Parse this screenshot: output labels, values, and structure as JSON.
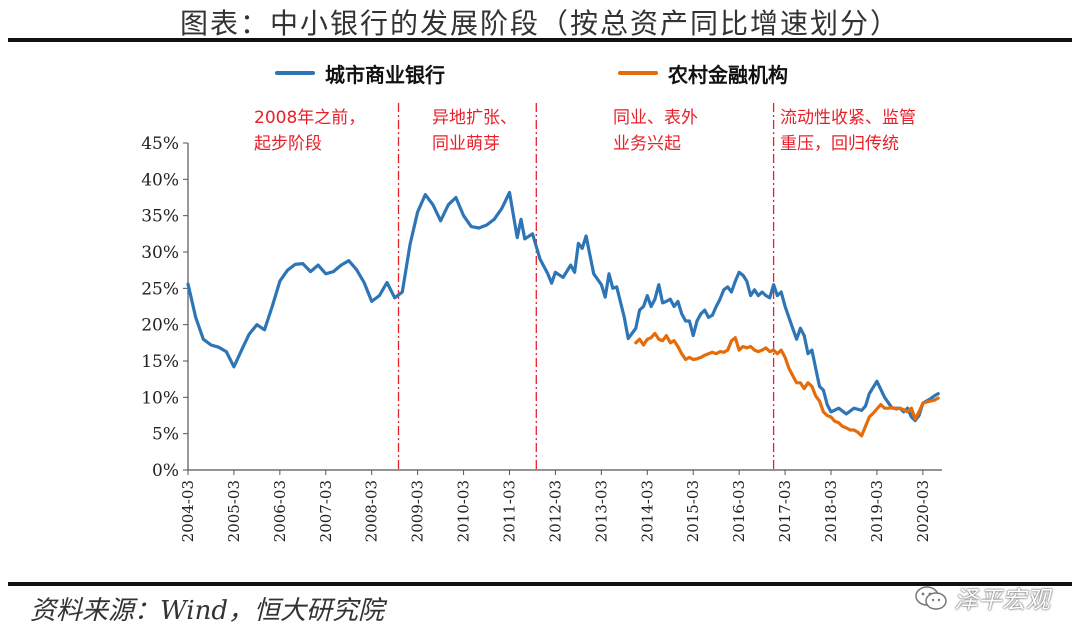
{
  "page": {
    "title": "图表：中小银行的发展阶段（按总资产同比增速划分）",
    "source": "资料来源：Wind，恒大研究院",
    "watermark": "泽平宏观"
  },
  "phases": [
    {
      "label_line1": "2008年之前，",
      "label_line2": "起步阶段"
    },
    {
      "label_line1": "异地扩张、",
      "label_line2": "同业萌芽"
    },
    {
      "label_line1": "同业、表外",
      "label_line2": "业务兴起"
    },
    {
      "label_line1": "流动性收紧、监管",
      "label_line2": "重压，回归传统"
    }
  ],
  "colors": {
    "city_bank": "#2e75b6",
    "rural_bank": "#e46c0a",
    "phase_text": "#e8202a",
    "divider": "#e8202a"
  },
  "chart_data": {
    "type": "line",
    "title": "",
    "xlabel": "",
    "ylabel": "",
    "ylim": [
      0,
      45
    ],
    "yticks": [
      "0%",
      "5%",
      "10%",
      "15%",
      "20%",
      "25%",
      "30%",
      "35%",
      "40%",
      "45%"
    ],
    "xlim": [
      "2004-03",
      "2020-08"
    ],
    "xticks": [
      "2004-03",
      "2005-03",
      "2006-03",
      "2007-03",
      "2008-03",
      "2009-03",
      "2010-03",
      "2011-03",
      "2012-03",
      "2013-03",
      "2014-03",
      "2015-03",
      "2016-03",
      "2017-03",
      "2018-03",
      "2019-03",
      "2020-03"
    ],
    "grid": false,
    "legend": "top",
    "phase_dividers": [
      "2008-10",
      "2011-10",
      "2016-12"
    ],
    "series": [
      {
        "name": "城市商业银行",
        "color": "#2e75b6",
        "points": [
          [
            "2004-03",
            25.6
          ],
          [
            "2004-05",
            21
          ],
          [
            "2004-07",
            18
          ],
          [
            "2004-09",
            17.2
          ],
          [
            "2004-11",
            16.9
          ],
          [
            "2005-01",
            16.3
          ],
          [
            "2005-03",
            14.2
          ],
          [
            "2005-05",
            16.5
          ],
          [
            "2005-07",
            18.7
          ],
          [
            "2005-09",
            20
          ],
          [
            "2005-11",
            19.3
          ],
          [
            "2006-01",
            22.5
          ],
          [
            "2006-03",
            26
          ],
          [
            "2006-05",
            27.5
          ],
          [
            "2006-07",
            28.3
          ],
          [
            "2006-09",
            28.4
          ],
          [
            "2006-11",
            27.3
          ],
          [
            "2007-01",
            28.2
          ],
          [
            "2007-03",
            27
          ],
          [
            "2007-05",
            27.3
          ],
          [
            "2007-07",
            28.2
          ],
          [
            "2007-09",
            28.8
          ],
          [
            "2007-11",
            27.6
          ],
          [
            "2008-01",
            25.8
          ],
          [
            "2008-03",
            23.2
          ],
          [
            "2008-05",
            24
          ],
          [
            "2008-07",
            25.8
          ],
          [
            "2008-09",
            23.7
          ],
          [
            "2008-11",
            24.5
          ],
          [
            "2009-01",
            31
          ],
          [
            "2009-03",
            35.5
          ],
          [
            "2009-05",
            37.9
          ],
          [
            "2009-07",
            36.5
          ],
          [
            "2009-09",
            34.3
          ],
          [
            "2009-11",
            36.5
          ],
          [
            "2010-01",
            37.5
          ],
          [
            "2010-03",
            35
          ],
          [
            "2010-05",
            33.5
          ],
          [
            "2010-07",
            33.3
          ],
          [
            "2010-09",
            33.7
          ],
          [
            "2010-11",
            34.5
          ],
          [
            "2011-01",
            36
          ],
          [
            "2011-03",
            38.2
          ],
          [
            "2011-05",
            32
          ],
          [
            "2011-06",
            34.5
          ],
          [
            "2011-07",
            31.8
          ],
          [
            "2011-09",
            32.5
          ],
          [
            "2011-11",
            29
          ],
          [
            "2012-01",
            27
          ],
          [
            "2012-02",
            25.7
          ],
          [
            "2012-03",
            27.2
          ],
          [
            "2012-05",
            26.5
          ],
          [
            "2012-07",
            28.2
          ],
          [
            "2012-08",
            27.2
          ],
          [
            "2012-09",
            31.2
          ],
          [
            "2012-10",
            30.5
          ],
          [
            "2012-11",
            32.2
          ],
          [
            "2013-01",
            27
          ],
          [
            "2013-03",
            25.5
          ],
          [
            "2013-04",
            23.8
          ],
          [
            "2013-05",
            27
          ],
          [
            "2013-06",
            25
          ],
          [
            "2013-07",
            25.2
          ],
          [
            "2013-09",
            21
          ],
          [
            "2013-10",
            18.1
          ],
          [
            "2013-12",
            19.5
          ],
          [
            "2014-01",
            22
          ],
          [
            "2014-02",
            22.5
          ],
          [
            "2014-03",
            24
          ],
          [
            "2014-04",
            22.5
          ],
          [
            "2014-05",
            23.5
          ],
          [
            "2014-06",
            25.5
          ],
          [
            "2014-07",
            23
          ],
          [
            "2014-08",
            23.2
          ],
          [
            "2014-09",
            23.5
          ],
          [
            "2014-10",
            22.5
          ],
          [
            "2014-11",
            23.2
          ],
          [
            "2014-12",
            21.5
          ],
          [
            "2015-01",
            20.5
          ],
          [
            "2015-02",
            20.5
          ],
          [
            "2015-03",
            18.5
          ],
          [
            "2015-04",
            20.5
          ],
          [
            "2015-05",
            21.5
          ],
          [
            "2015-06",
            22
          ],
          [
            "2015-07",
            21
          ],
          [
            "2015-08",
            21.3
          ],
          [
            "2015-09",
            22.5
          ],
          [
            "2015-10",
            23.5
          ],
          [
            "2015-11",
            24.8
          ],
          [
            "2015-12",
            25.2
          ],
          [
            "2016-01",
            24.5
          ],
          [
            "2016-02",
            26
          ],
          [
            "2016-03",
            27.2
          ],
          [
            "2016-04",
            26.8
          ],
          [
            "2016-05",
            26
          ],
          [
            "2016-06",
            24
          ],
          [
            "2016-07",
            24.8
          ],
          [
            "2016-08",
            24
          ],
          [
            "2016-09",
            24.5
          ],
          [
            "2016-10",
            24
          ],
          [
            "2016-11",
            23.7
          ],
          [
            "2016-12",
            25.5
          ],
          [
            "2017-01",
            24
          ],
          [
            "2017-02",
            24.5
          ],
          [
            "2017-03",
            22.5
          ],
          [
            "2017-04",
            21
          ],
          [
            "2017-05",
            19.5
          ],
          [
            "2017-06",
            18
          ],
          [
            "2017-07",
            19.5
          ],
          [
            "2017-08",
            18.5
          ],
          [
            "2017-09",
            16
          ],
          [
            "2017-10",
            16.5
          ],
          [
            "2017-11",
            14
          ],
          [
            "2017-12",
            11.5
          ],
          [
            "2018-01",
            11
          ],
          [
            "2018-02",
            9
          ],
          [
            "2018-03",
            8
          ],
          [
            "2018-05",
            8.5
          ],
          [
            "2018-07",
            7.7
          ],
          [
            "2018-09",
            8.5
          ],
          [
            "2018-11",
            8.2
          ],
          [
            "2018-12",
            8.8
          ],
          [
            "2019-01",
            10.5
          ],
          [
            "2019-03",
            12.2
          ],
          [
            "2019-05",
            10
          ],
          [
            "2019-07",
            8.5
          ],
          [
            "2019-09",
            8.5
          ],
          [
            "2019-10",
            8
          ],
          [
            "2019-11",
            8.5
          ],
          [
            "2019-12",
            7.3
          ],
          [
            "2020-01",
            6.8
          ],
          [
            "2020-02",
            7.5
          ],
          [
            "2020-03",
            9.2
          ],
          [
            "2020-05",
            9.8
          ],
          [
            "2020-06",
            10.2
          ],
          [
            "2020-07",
            10.5
          ]
        ]
      },
      {
        "name": "农村金融机构",
        "color": "#e46c0a",
        "points": [
          [
            "2013-12",
            17.5
          ],
          [
            "2014-01",
            18
          ],
          [
            "2014-02",
            17.2
          ],
          [
            "2014-03",
            18
          ],
          [
            "2014-04",
            18.2
          ],
          [
            "2014-05",
            18.8
          ],
          [
            "2014-06",
            18
          ],
          [
            "2014-07",
            17.8
          ],
          [
            "2014-08",
            18.5
          ],
          [
            "2014-09",
            17.5
          ],
          [
            "2014-10",
            17.8
          ],
          [
            "2014-11",
            17
          ],
          [
            "2014-12",
            16
          ],
          [
            "2015-01",
            15.2
          ],
          [
            "2015-02",
            15.5
          ],
          [
            "2015-03",
            15.2
          ],
          [
            "2015-04",
            15.3
          ],
          [
            "2015-05",
            15.5
          ],
          [
            "2015-06",
            15.8
          ],
          [
            "2015-07",
            16
          ],
          [
            "2015-08",
            16.2
          ],
          [
            "2015-09",
            16
          ],
          [
            "2015-10",
            16.3
          ],
          [
            "2015-11",
            16.2
          ],
          [
            "2015-12",
            16.5
          ],
          [
            "2016-01",
            17.8
          ],
          [
            "2016-02",
            18.2
          ],
          [
            "2016-03",
            16.5
          ],
          [
            "2016-04",
            17
          ],
          [
            "2016-05",
            16.8
          ],
          [
            "2016-06",
            17
          ],
          [
            "2016-07",
            16.5
          ],
          [
            "2016-08",
            16.3
          ],
          [
            "2016-09",
            16.5
          ],
          [
            "2016-10",
            16.8
          ],
          [
            "2016-11",
            16.3
          ],
          [
            "2016-12",
            16.5
          ],
          [
            "2017-01",
            16
          ],
          [
            "2017-02",
            16.5
          ],
          [
            "2017-03",
            15.5
          ],
          [
            "2017-04",
            14
          ],
          [
            "2017-05",
            13
          ],
          [
            "2017-06",
            12
          ],
          [
            "2017-07",
            12
          ],
          [
            "2017-08",
            11.2
          ],
          [
            "2017-09",
            12
          ],
          [
            "2017-10",
            11.5
          ],
          [
            "2017-11",
            10.2
          ],
          [
            "2017-12",
            9.5
          ],
          [
            "2018-01",
            8
          ],
          [
            "2018-02",
            7.5
          ],
          [
            "2018-03",
            7.3
          ],
          [
            "2018-04",
            6.7
          ],
          [
            "2018-05",
            6.5
          ],
          [
            "2018-06",
            6
          ],
          [
            "2018-07",
            5.8
          ],
          [
            "2018-08",
            5.5
          ],
          [
            "2018-09",
            5.5
          ],
          [
            "2018-10",
            5.2
          ],
          [
            "2018-11",
            4.7
          ],
          [
            "2018-12",
            6
          ],
          [
            "2019-01",
            7.3
          ],
          [
            "2019-02",
            7.8
          ],
          [
            "2019-03",
            8.4
          ],
          [
            "2019-04",
            9
          ],
          [
            "2019-05",
            8.5
          ],
          [
            "2019-06",
            8.5
          ],
          [
            "2019-07",
            8.6
          ],
          [
            "2019-08",
            8.4
          ],
          [
            "2019-09",
            8.5
          ],
          [
            "2019-10",
            8.3
          ],
          [
            "2019-11",
            8
          ],
          [
            "2019-12",
            8.5
          ],
          [
            "2020-01",
            7
          ],
          [
            "2020-02",
            8
          ],
          [
            "2020-03",
            9.2
          ],
          [
            "2020-05",
            9.5
          ],
          [
            "2020-06",
            9.6
          ],
          [
            "2020-07",
            9.9
          ]
        ]
      }
    ]
  }
}
